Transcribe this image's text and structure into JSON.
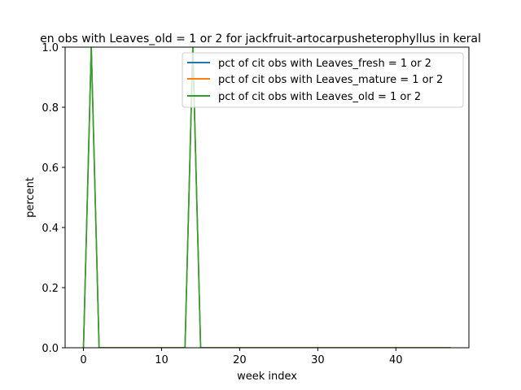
{
  "chart_data": {
    "type": "line",
    "title": "en obs with Leaves_old = 1 or 2 for jackfruit-artocarpusheterophyllus in keral",
    "xlabel": "week index",
    "ylabel": "percent",
    "xlim": [
      -2.35,
      49.35
    ],
    "ylim": [
      0,
      1.0
    ],
    "xticks": [
      0,
      10,
      20,
      30,
      40
    ],
    "yticks": [
      0.0,
      0.2,
      0.4,
      0.6,
      0.8,
      1.0
    ],
    "ytick_labels": [
      "0.0",
      "0.2",
      "0.4",
      "0.6",
      "0.8",
      "1.0"
    ],
    "grid": false,
    "legend_position": "upper-right",
    "x": [
      0,
      1,
      2,
      3,
      4,
      5,
      6,
      7,
      8,
      9,
      10,
      11,
      12,
      13,
      14,
      15,
      16,
      17,
      18,
      19,
      20,
      21,
      22,
      23,
      24,
      25,
      26,
      27,
      28,
      29,
      30,
      31,
      32,
      33,
      34,
      35,
      36,
      37,
      38,
      39,
      40,
      41,
      42,
      43,
      44,
      45,
      46,
      47
    ],
    "series": [
      {
        "name": "pct of cit obs with Leaves_fresh = 1 or 2",
        "color": "#1f77b4",
        "values": [
          0,
          1,
          0,
          0,
          0,
          0,
          0,
          0,
          0,
          0,
          0,
          0,
          0,
          0,
          1,
          0,
          0,
          0,
          0,
          0,
          0,
          0,
          0,
          0,
          0,
          0,
          0,
          0,
          0,
          0,
          0,
          0,
          0,
          0,
          0,
          0,
          0,
          0,
          0,
          0,
          0,
          0,
          0,
          0,
          0,
          0,
          0,
          0
        ]
      },
      {
        "name": "pct of cit obs with Leaves_mature = 1 or 2",
        "color": "#ff7f0e",
        "values": [
          0,
          1,
          0,
          0,
          0,
          0,
          0,
          0,
          0,
          0,
          0,
          0,
          0,
          0,
          1,
          0,
          0,
          0,
          0,
          0,
          0,
          0,
          0,
          0,
          0,
          0,
          0,
          0,
          0,
          0,
          0,
          0,
          0,
          0,
          0,
          0,
          0,
          0,
          0,
          0,
          0,
          0,
          0,
          0,
          0,
          0,
          0,
          0
        ]
      },
      {
        "name": "pct of cit obs with Leaves_old = 1 or 2",
        "color": "#2ca02c",
        "values": [
          0,
          1,
          0,
          0,
          0,
          0,
          0,
          0,
          0,
          0,
          0,
          0,
          0,
          0,
          1,
          0,
          0,
          0,
          0,
          0,
          0,
          0,
          0,
          0,
          0,
          0,
          0,
          0,
          0,
          0,
          0,
          0,
          0,
          0,
          0,
          0,
          0,
          0,
          0,
          0,
          0,
          0,
          0,
          0,
          0,
          0,
          0,
          0
        ]
      }
    ]
  }
}
